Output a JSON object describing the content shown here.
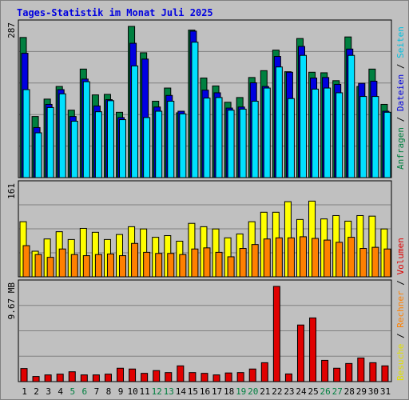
{
  "title": "Tages-Statistik im Monat Juli 2025",
  "legend": {
    "slash": "/",
    "right_top": [
      {
        "text": "Anfragen",
        "color": "#008040"
      },
      {
        "text": "Dateien",
        "color": "#0000e0"
      },
      {
        "text": "Seiten",
        "color": "#00c0e0"
      }
    ],
    "right_bottom": [
      {
        "text": "Besuche",
        "color": "#e0e000"
      },
      {
        "text": "Rechner",
        "color": "#ff8000"
      },
      {
        "text": "Volumen",
        "color": "#e00000"
      }
    ]
  },
  "colors": {
    "hits": "#008040",
    "files": "#0000e0",
    "pages": "#00e0ff",
    "visits": "#ffff00",
    "sites": "#ff8000",
    "kbytes": "#e00000",
    "weekend_label": "#008040",
    "weekday_label": "#000000"
  },
  "chart_data": [
    {
      "type": "bar",
      "panel": "top",
      "ymax_label": "287",
      "ylim": [
        0,
        287
      ],
      "categories": [
        "1",
        "2",
        "3",
        "4",
        "5",
        "6",
        "7",
        "8",
        "9",
        "10",
        "11",
        "12",
        "13",
        "14",
        "15",
        "16",
        "17",
        "18",
        "19",
        "20",
        "21",
        "22",
        "23",
        "24",
        "25",
        "26",
        "27",
        "28",
        "29",
        "30",
        "31"
      ],
      "weekend_days": [
        "5",
        "6",
        "12",
        "13",
        "19",
        "20",
        "26",
        "27"
      ],
      "series": [
        {
          "name": "Anfragen",
          "values": [
            266,
            116,
            149,
            173,
            128,
            206,
            157,
            158,
            124,
            287,
            237,
            145,
            170,
            123,
            280,
            189,
            174,
            143,
            152,
            190,
            203,
            242,
            201,
            264,
            200,
            199,
            184,
            267,
            173,
            206,
            139
          ]
        },
        {
          "name": "Dateien",
          "values": [
            236,
            95,
            139,
            167,
            116,
            187,
            136,
            148,
            114,
            255,
            225,
            134,
            156,
            126,
            278,
            166,
            161,
            132,
            134,
            180,
            173,
            230,
            200,
            249,
            189,
            190,
            177,
            244,
            179,
            183,
            126
          ]
        },
        {
          "name": "Seiten",
          "values": [
            167,
            85,
            133,
            159,
            107,
            182,
            125,
            146,
            110,
            212,
            114,
            126,
            145,
            121,
            257,
            151,
            152,
            128,
            130,
            145,
            170,
            210,
            150,
            232,
            168,
            170,
            161,
            232,
            154,
            154,
            124
          ]
        }
      ]
    },
    {
      "type": "bar",
      "panel": "middle",
      "ymax_label": "161",
      "ylim": [
        0,
        161
      ],
      "categories": [
        "1",
        "2",
        "3",
        "4",
        "5",
        "6",
        "7",
        "8",
        "9",
        "10",
        "11",
        "12",
        "13",
        "14",
        "15",
        "16",
        "17",
        "18",
        "19",
        "20",
        "21",
        "22",
        "23",
        "24",
        "25",
        "26",
        "27",
        "28",
        "29",
        "30",
        "31"
      ],
      "series": [
        {
          "name": "Besuche",
          "values": [
            99,
            46,
            68,
            81,
            67,
            87,
            80,
            67,
            76,
            90,
            86,
            71,
            74,
            64,
            96,
            90,
            86,
            70,
            77,
            99,
            116,
            116,
            135,
            103,
            136,
            104,
            110,
            100,
            110,
            109,
            86
          ]
        },
        {
          "name": "Rechner",
          "values": [
            56,
            40,
            35,
            50,
            40,
            38,
            40,
            41,
            38,
            60,
            44,
            42,
            42,
            40,
            50,
            52,
            44,
            36,
            51,
            58,
            68,
            70,
            70,
            72,
            69,
            66,
            62,
            71,
            51,
            53,
            50
          ]
        }
      ]
    },
    {
      "type": "bar",
      "panel": "bottom",
      "ymax_label": "9.67 MB",
      "ylim": [
        0,
        9.67
      ],
      "categories": [
        "1",
        "2",
        "3",
        "4",
        "5",
        "6",
        "7",
        "8",
        "9",
        "10",
        "11",
        "12",
        "13",
        "14",
        "15",
        "16",
        "17",
        "18",
        "19",
        "20",
        "21",
        "22",
        "23",
        "24",
        "25",
        "26",
        "27",
        "28",
        "29",
        "30",
        "31"
      ],
      "series": [
        {
          "name": "Volumen",
          "values": [
            1.33,
            0.52,
            0.68,
            0.76,
            1.0,
            0.68,
            0.68,
            0.76,
            1.36,
            1.28,
            0.84,
            1.12,
            0.92,
            1.6,
            0.92,
            0.84,
            0.68,
            0.88,
            0.92,
            1.28,
            1.92,
            9.67,
            0.78,
            5.75,
            6.47,
            2.16,
            1.36,
            1.84,
            2.4,
            1.92,
            1.6
          ]
        }
      ]
    }
  ]
}
